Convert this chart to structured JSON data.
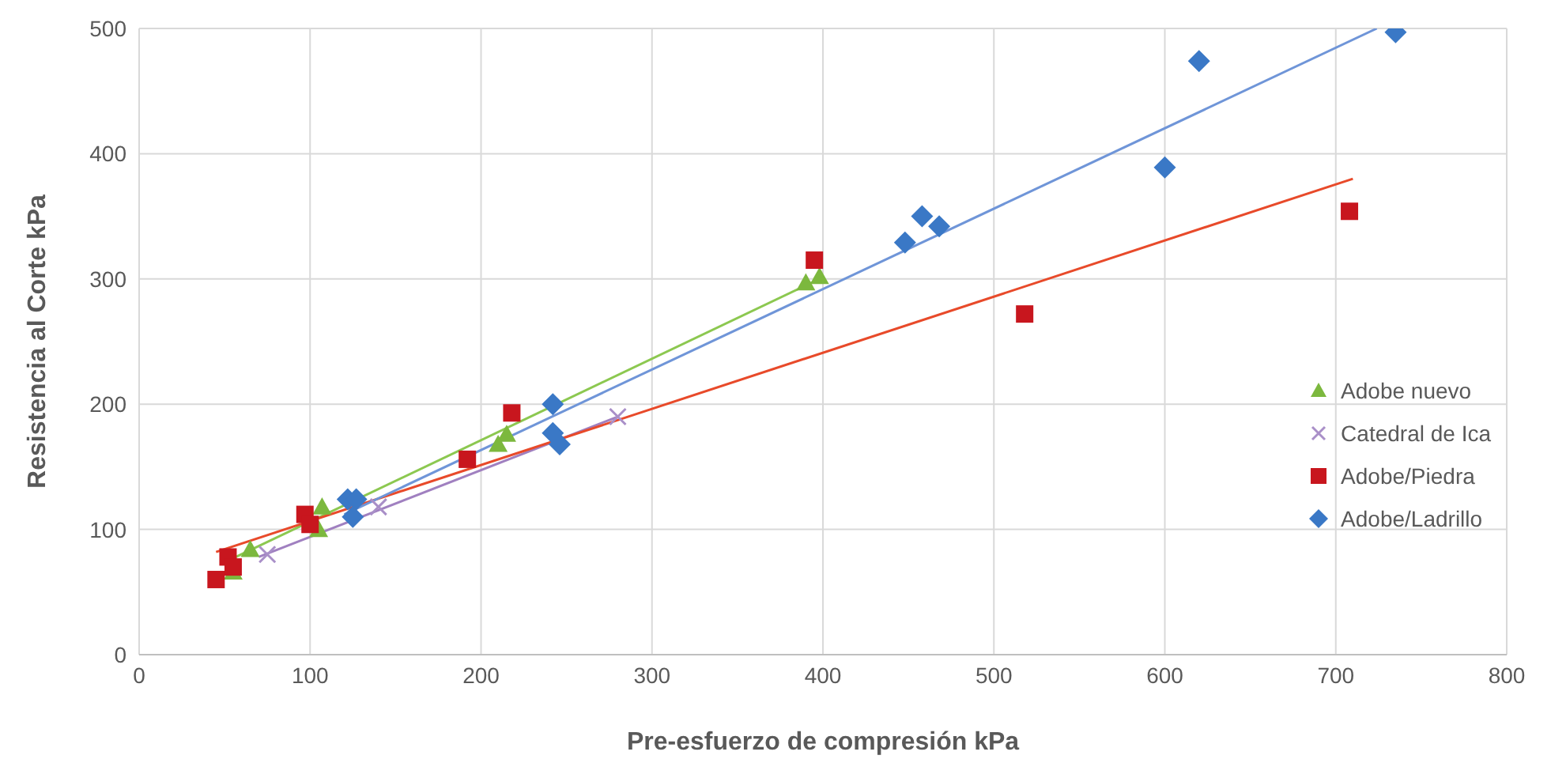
{
  "chart_data": {
    "type": "scatter",
    "xlabel": "Pre-esfuerzo de compresión kPa",
    "ylabel": "Resistencia al Corte kPa",
    "xlim": [
      0,
      800
    ],
    "xticks": [
      0,
      100,
      200,
      300,
      400,
      500,
      600,
      700,
      800
    ],
    "ylim": [
      0,
      500
    ],
    "yticks": [
      0,
      100,
      200,
      300,
      400,
      500
    ],
    "grid": true,
    "legend": "right",
    "series": [
      {
        "name": "Adobe nuevo",
        "marker": "triangle",
        "color": "#7cb83e",
        "x": [
          55,
          65,
          105,
          107,
          210,
          215,
          390,
          398
        ],
        "values": [
          66,
          84,
          100,
          118,
          168,
          176,
          297,
          302
        ]
      },
      {
        "name": "Catedral de Ica",
        "marker": "cross",
        "color": "#a98fc8",
        "x": [
          75,
          140,
          280
        ],
        "values": [
          80,
          118,
          190
        ]
      },
      {
        "name": "Adobe/Piedra",
        "marker": "square",
        "color": "#c8161e",
        "x": [
          45,
          52,
          55,
          97,
          100,
          192,
          218,
          395,
          518,
          708
        ],
        "values": [
          60,
          78,
          70,
          112,
          104,
          156,
          193,
          315,
          272,
          354
        ]
      },
      {
        "name": "Adobe/Ladrillo",
        "marker": "diamond",
        "color": "#3a78c6",
        "x": [
          122,
          127,
          125,
          242,
          242,
          246,
          448,
          458,
          468,
          600,
          620,
          735
        ],
        "values": [
          124,
          124,
          110,
          200,
          177,
          168,
          329,
          350,
          342,
          389,
          474,
          497
        ]
      },
      {
        "type": "line",
        "marker": "none",
        "color": "#8cc850",
        "x": [
          52,
          398
        ],
        "values": [
          75,
          300
        ]
      },
      {
        "type": "line",
        "marker": "none",
        "color": "#a080c0",
        "x": [
          70,
          280
        ],
        "values": [
          78,
          190
        ]
      },
      {
        "type": "line",
        "marker": "none",
        "color": "#e84a2a",
        "x": [
          45,
          710
        ],
        "values": [
          82,
          380
        ]
      },
      {
        "type": "line",
        "marker": "none",
        "color": "#6f95d8",
        "x": [
          120,
          724
        ],
        "values": [
          112,
          500
        ]
      }
    ]
  }
}
